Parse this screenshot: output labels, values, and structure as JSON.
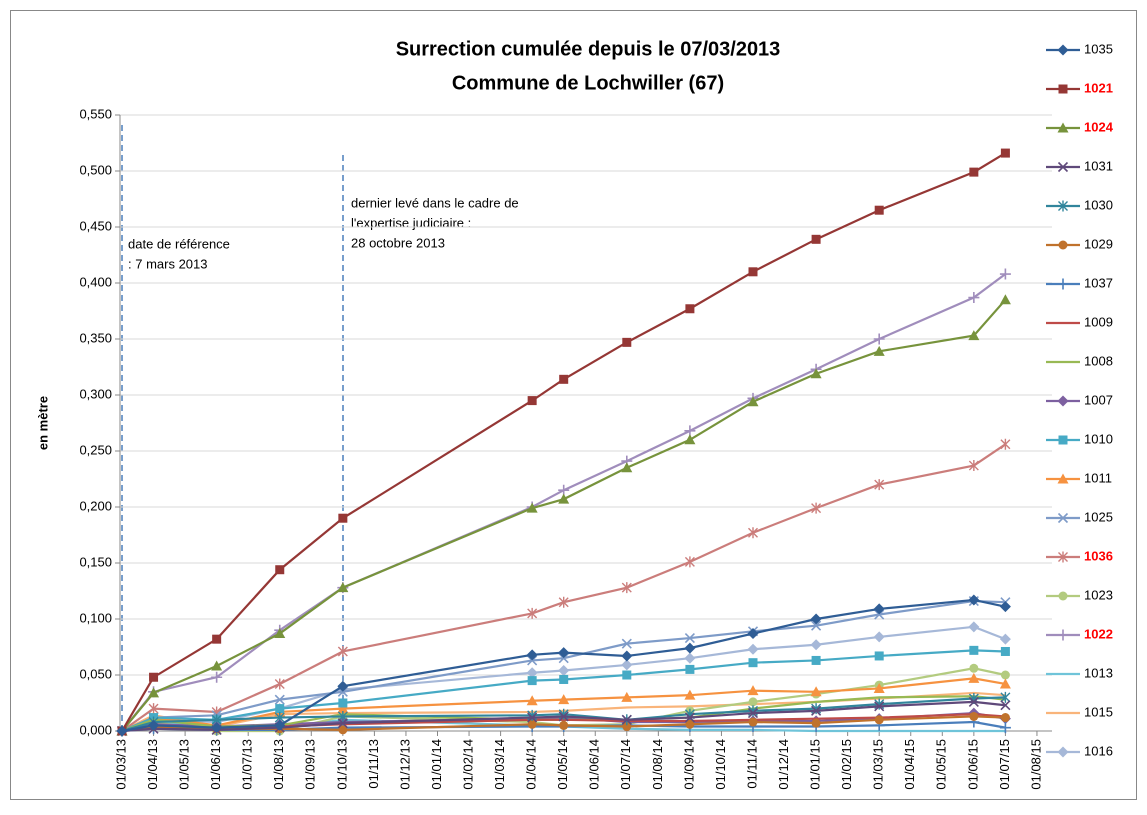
{
  "chart_data": {
    "type": "line",
    "title": [
      "Surrection cumulée depuis le 07/03/2013",
      "Commune de Lochwiller (67)"
    ],
    "y_label": "en mètre",
    "categories": [
      "01/03/13",
      "01/04/13",
      "01/05/13",
      "01/06/13",
      "01/07/13",
      "01/08/13",
      "01/09/13",
      "01/10/13",
      "01/11/13",
      "01/12/13",
      "01/01/14",
      "01/02/14",
      "01/03/14",
      "01/04/14",
      "01/05/14",
      "01/06/14",
      "01/07/14",
      "01/08/14",
      "01/09/14",
      "01/10/14",
      "01/11/14",
      "01/12/14",
      "01/01/15",
      "01/02/15",
      "01/03/15",
      "01/04/15",
      "01/05/15",
      "01/06/15",
      "01/07/15",
      "01/08/15"
    ],
    "x": [
      "01/03/13",
      "01/04/13",
      "01/06/13",
      "01/08/13",
      "01/10/13",
      "01/04/14",
      "01/05/14",
      "01/07/14",
      "01/09/14",
      "01/11/14",
      "01/01/15",
      "01/03/15",
      "01/06/15",
      "01/07/15"
    ],
    "ylim": [
      0,
      0.55
    ],
    "yticks": [
      {
        "value": 0,
        "label": "0,000"
      },
      {
        "value": 0.05,
        "label": "0,050"
      },
      {
        "value": 0.1,
        "label": "0,100"
      },
      {
        "value": 0.15,
        "label": "0,150"
      },
      {
        "value": 0.2,
        "label": "0,200"
      },
      {
        "value": 0.25,
        "label": "0,250"
      },
      {
        "value": 0.3,
        "label": "0,300"
      },
      {
        "value": 0.35,
        "label": "0,350"
      },
      {
        "value": 0.4,
        "label": "0,400"
      },
      {
        "value": 0.45,
        "label": "0,450"
      },
      {
        "value": 0.5,
        "label": "0,500"
      },
      {
        "value": 0.55,
        "label": "0,550"
      }
    ],
    "grid": true,
    "legend": "right",
    "annotations": [
      {
        "lines": [
          "date de référence",
          ": 7 mars 2013"
        ]
      },
      {
        "lines": [
          "dernier levé dans le cadre de",
          "l'expertise judiciaire  :",
          "28 octobre 2013"
        ]
      }
    ],
    "series": [
      {
        "name": "1035",
        "color": "#2f5d95",
        "marker": "diamond",
        "highlight": false,
        "values": [
          0,
          0.005,
          0.003,
          0.005,
          0.04,
          0.068,
          0.07,
          0.067,
          0.074,
          0.087,
          0.1,
          0.109,
          0.117,
          0.111
        ]
      },
      {
        "name": "1021",
        "color": "#953735",
        "marker": "square",
        "highlight": true,
        "values": [
          0,
          0.048,
          0.082,
          0.144,
          0.19,
          0.295,
          0.314,
          0.347,
          0.377,
          0.41,
          0.439,
          0.465,
          0.499,
          0.516
        ]
      },
      {
        "name": "1024",
        "color": "#77933c",
        "marker": "triangle",
        "highlight": true,
        "values": [
          0,
          0.034,
          0.058,
          0.087,
          0.128,
          0.199,
          0.207,
          0.235,
          0.26,
          0.294,
          0.319,
          0.339,
          0.353,
          0.385
        ]
      },
      {
        "name": "1031",
        "color": "#5f497a",
        "marker": "x",
        "highlight": false,
        "values": [
          0,
          0.002,
          0.001,
          0.003,
          0.007,
          0.012,
          0.013,
          0.01,
          0.012,
          0.016,
          0.018,
          0.022,
          0.026,
          0.023
        ]
      },
      {
        "name": "1030",
        "color": "#31859c",
        "marker": "asterisk",
        "highlight": false,
        "values": [
          0,
          0.008,
          0.01,
          0.012,
          0.013,
          0.014,
          0.015,
          0.01,
          0.015,
          0.018,
          0.02,
          0.024,
          0.029,
          0.03
        ]
      },
      {
        "name": "1029",
        "color": "#c0722c",
        "marker": "circle",
        "highlight": false,
        "values": [
          0,
          0.004,
          0.002,
          0.002,
          0.001,
          0.006,
          0.005,
          0.004,
          0.006,
          0.008,
          0.007,
          0.01,
          0.013,
          0.012
        ]
      },
      {
        "name": "1037",
        "color": "#4a7ebb",
        "marker": "plus",
        "highlight": false,
        "values": [
          0,
          0.002,
          0.001,
          0.001,
          0.003,
          0.004,
          0.004,
          0.005,
          0.004,
          0.004,
          0.004,
          0.005,
          0.008,
          0.003
        ]
      },
      {
        "name": "1009",
        "color": "#be4b48",
        "marker": "none",
        "highlight": false,
        "values": [
          0,
          0.004,
          0.002,
          0.004,
          0.006,
          0.01,
          0.01,
          0.009,
          0.009,
          0.01,
          0.011,
          0.012,
          0.015,
          0.013
        ]
      },
      {
        "name": "1008",
        "color": "#98b954",
        "marker": "none",
        "highlight": false,
        "values": [
          0,
          0.01,
          0.004,
          0.005,
          0.015,
          0.01,
          0.01,
          0.01,
          0.012,
          0.02,
          0.026,
          0.03,
          0.031,
          0.028
        ]
      },
      {
        "name": "1007",
        "color": "#7d60a0",
        "marker": "diamond",
        "highlight": false,
        "values": [
          0,
          0.006,
          0.004,
          0.006,
          0.008,
          0.011,
          0.012,
          0.008,
          0.008,
          0.009,
          0.009,
          0.011,
          0.016,
          0.011
        ]
      },
      {
        "name": "1010",
        "color": "#46aac5",
        "marker": "square",
        "highlight": false,
        "values": [
          0,
          0.012,
          0.01,
          0.02,
          0.025,
          0.045,
          0.046,
          0.05,
          0.055,
          0.061,
          0.063,
          0.067,
          0.072,
          0.071
        ]
      },
      {
        "name": "1011",
        "color": "#f69240",
        "marker": "triangle",
        "highlight": false,
        "values": [
          0,
          0.012,
          0.005,
          0.017,
          0.02,
          0.027,
          0.028,
          0.03,
          0.032,
          0.036,
          0.035,
          0.038,
          0.047,
          0.042
        ]
      },
      {
        "name": "1025",
        "color": "#7e9bc8",
        "marker": "x",
        "highlight": false,
        "values": [
          0,
          0.012,
          0.014,
          0.028,
          0.035,
          0.063,
          0.065,
          0.078,
          0.083,
          0.089,
          0.094,
          0.104,
          0.116,
          0.115
        ]
      },
      {
        "name": "1036",
        "color": "#cb7d7b",
        "marker": "asterisk",
        "highlight": true,
        "values": [
          0,
          0.02,
          0.017,
          0.042,
          0.071,
          0.105,
          0.115,
          0.128,
          0.151,
          0.177,
          0.199,
          0.22,
          0.237,
          0.256
        ]
      },
      {
        "name": "1023",
        "color": "#b3cb7f",
        "marker": "circle",
        "highlight": false,
        "values": [
          0,
          0.008,
          0.0,
          0.0,
          0.013,
          0.008,
          0.005,
          0.006,
          0.018,
          0.026,
          0.033,
          0.041,
          0.056,
          0.05
        ]
      },
      {
        "name": "1022",
        "color": "#a08dbc",
        "marker": "plus",
        "highlight": true,
        "values": [
          0,
          0.035,
          0.048,
          0.09,
          0.128,
          0.2,
          0.215,
          0.241,
          0.268,
          0.297,
          0.323,
          0.35,
          0.387,
          0.408
        ]
      },
      {
        "name": "1013",
        "color": "#6fc4d9",
        "marker": "none",
        "highlight": false,
        "values": [
          0,
          0.009,
          0.002,
          0.003,
          0.01,
          0.005,
          0.004,
          0.002,
          0.001,
          0.001,
          0.0,
          0.0,
          0.0,
          0.0
        ]
      },
      {
        "name": "1015",
        "color": "#f9b47a",
        "marker": "none",
        "highlight": false,
        "values": [
          0,
          0.014,
          0.004,
          0.015,
          0.016,
          0.017,
          0.018,
          0.021,
          0.022,
          0.024,
          0.026,
          0.029,
          0.034,
          0.032
        ]
      },
      {
        "name": "1016",
        "color": "#a6b8d8",
        "marker": "diamond",
        "highlight": false,
        "values": [
          0,
          0.01,
          0.008,
          0.02,
          0.037,
          0.052,
          0.054,
          0.059,
          0.065,
          0.073,
          0.077,
          0.084,
          0.093,
          0.082
        ]
      }
    ]
  }
}
